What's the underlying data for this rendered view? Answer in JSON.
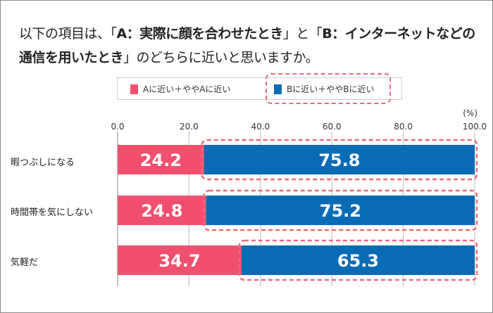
{
  "title_segments": [
    {
      "text": "以下の項目は、「",
      "bold": false
    },
    {
      "text": "A：実際に顔を合わせたとき",
      "bold": true
    },
    {
      "text": "」と「",
      "bold": false
    },
    {
      "text": "B：インターネットなどの通信を用いたとき",
      "bold": true
    },
    {
      "text": "」のどちらに近いと思いますか。",
      "bold": false
    }
  ],
  "chart_data": {
    "type": "bar",
    "stacked": true,
    "orientation": "horizontal",
    "categories": [
      "暇つぶしになる",
      "時間帯を気にしない",
      "気軽だ"
    ],
    "series": [
      {
        "name": "Aに近い＋ややAに近い",
        "values": [
          24.2,
          24.8,
          34.7
        ],
        "color": "#f0506e"
      },
      {
        "name": "Bに近い＋ややBに近い",
        "values": [
          75.8,
          75.2,
          65.3
        ],
        "color": "#0a6bb5"
      }
    ],
    "xlim": [
      0,
      100
    ],
    "ticks": [
      "0.0",
      "20.0",
      "40.0",
      "60.0",
      "80.0",
      "100.0"
    ],
    "unit_label": "(%)",
    "grid": true,
    "legend": "top",
    "highlight_color": "#e86b82"
  }
}
